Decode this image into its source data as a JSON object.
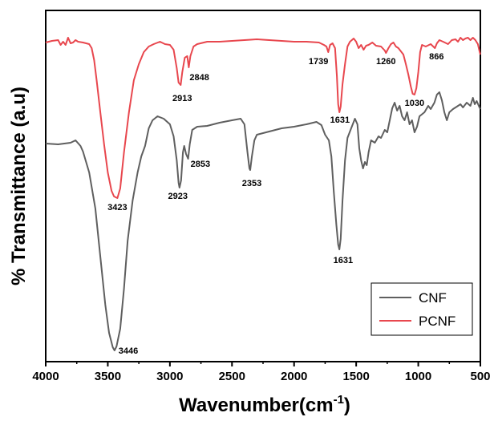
{
  "chart_data": {
    "type": "line",
    "xlabel_main": "Wavenumber(cm",
    "xlabel_sup": "-1",
    "xlabel_end": ")",
    "ylabel": "% Transmittance (a.u)",
    "xlim": [
      4000,
      500
    ],
    "xticks": [
      "4000",
      "3500",
      "3000",
      "2500",
      "2000",
      "1500",
      "1000",
      "500"
    ],
    "legend_position": "bottom-right",
    "grid": false,
    "series": [
      {
        "name": "CNF",
        "color": "#5f5f5f",
        "points": [
          [
            4000,
            179
          ],
          [
            3900,
            180
          ],
          [
            3800,
            178
          ],
          [
            3760,
            175
          ],
          [
            3720,
            182
          ],
          [
            3700,
            189
          ],
          [
            3650,
            215
          ],
          [
            3600,
            260
          ],
          [
            3560,
            320
          ],
          [
            3520,
            380
          ],
          [
            3490,
            415
          ],
          [
            3460,
            433
          ],
          [
            3446,
            437
          ],
          [
            3430,
            432
          ],
          [
            3400,
            410
          ],
          [
            3370,
            360
          ],
          [
            3340,
            300
          ],
          [
            3300,
            250
          ],
          [
            3260,
            215
          ],
          [
            3230,
            195
          ],
          [
            3200,
            182
          ],
          [
            3170,
            160
          ],
          [
            3140,
            150
          ],
          [
            3100,
            145
          ],
          [
            3050,
            148
          ],
          [
            3000,
            155
          ],
          [
            2970,
            170
          ],
          [
            2945,
            200
          ],
          [
            2930,
            228
          ],
          [
            2923,
            234
          ],
          [
            2910,
            225
          ],
          [
            2895,
            190
          ],
          [
            2885,
            182
          ],
          [
            2870,
            192
          ],
          [
            2853,
            198
          ],
          [
            2840,
            180
          ],
          [
            2820,
            162
          ],
          [
            2780,
            158
          ],
          [
            2700,
            157
          ],
          [
            2600,
            153
          ],
          [
            2500,
            150
          ],
          [
            2430,
            148
          ],
          [
            2400,
            155
          ],
          [
            2375,
            190
          ],
          [
            2360,
            210
          ],
          [
            2353,
            212
          ],
          [
            2340,
            195
          ],
          [
            2320,
            175
          ],
          [
            2300,
            168
          ],
          [
            2200,
            164
          ],
          [
            2100,
            160
          ],
          [
            2000,
            158
          ],
          [
            1900,
            155
          ],
          [
            1820,
            152
          ],
          [
            1780,
            156
          ],
          [
            1750,
            168
          ],
          [
            1720,
            175
          ],
          [
            1700,
            195
          ],
          [
            1680,
            240
          ],
          [
            1660,
            280
          ],
          [
            1645,
            305
          ],
          [
            1635,
            311
          ],
          [
            1625,
            298
          ],
          [
            1610,
            250
          ],
          [
            1590,
            200
          ],
          [
            1570,
            172
          ],
          [
            1540,
            160
          ],
          [
            1510,
            148
          ],
          [
            1490,
            155
          ],
          [
            1475,
            185
          ],
          [
            1460,
            200
          ],
          [
            1445,
            210
          ],
          [
            1430,
            202
          ],
          [
            1415,
            206
          ],
          [
            1400,
            190
          ],
          [
            1380,
            175
          ],
          [
            1350,
            178
          ],
          [
            1320,
            170
          ],
          [
            1300,
            172
          ],
          [
            1270,
            162
          ],
          [
            1250,
            165
          ],
          [
            1230,
            150
          ],
          [
            1210,
            135
          ],
          [
            1190,
            128
          ],
          [
            1170,
            138
          ],
          [
            1150,
            132
          ],
          [
            1130,
            145
          ],
          [
            1110,
            150
          ],
          [
            1090,
            140
          ],
          [
            1070,
            155
          ],
          [
            1050,
            150
          ],
          [
            1030,
            165
          ],
          [
            1010,
            158
          ],
          [
            990,
            145
          ],
          [
            950,
            140
          ],
          [
            920,
            132
          ],
          [
            900,
            136
          ],
          [
            870,
            128
          ],
          [
            850,
            118
          ],
          [
            830,
            115
          ],
          [
            810,
            125
          ],
          [
            790,
            140
          ],
          [
            770,
            150
          ],
          [
            750,
            140
          ],
          [
            720,
            136
          ],
          [
            690,
            133
          ],
          [
            660,
            130
          ],
          [
            640,
            134
          ],
          [
            610,
            128
          ],
          [
            580,
            132
          ],
          [
            560,
            122
          ],
          [
            545,
            130
          ],
          [
            530,
            126
          ],
          [
            510,
            133
          ],
          [
            500,
            136
          ]
        ]
      },
      {
        "name": "PCNF",
        "color": "#e8474e",
        "points": [
          [
            4000,
            53
          ],
          [
            3950,
            51
          ],
          [
            3900,
            50
          ],
          [
            3880,
            56
          ],
          [
            3860,
            52
          ],
          [
            3840,
            56
          ],
          [
            3820,
            47
          ],
          [
            3800,
            54
          ],
          [
            3780,
            53
          ],
          [
            3760,
            50
          ],
          [
            3740,
            52
          ],
          [
            3700,
            53
          ],
          [
            3650,
            55
          ],
          [
            3630,
            60
          ],
          [
            3610,
            75
          ],
          [
            3590,
            100
          ],
          [
            3560,
            140
          ],
          [
            3530,
            180
          ],
          [
            3500,
            215
          ],
          [
            3470,
            238
          ],
          [
            3450,
            245
          ],
          [
            3423,
            247
          ],
          [
            3400,
            235
          ],
          [
            3370,
            190
          ],
          [
            3330,
            140
          ],
          [
            3290,
            100
          ],
          [
            3250,
            80
          ],
          [
            3210,
            65
          ],
          [
            3170,
            58
          ],
          [
            3130,
            55
          ],
          [
            3080,
            52
          ],
          [
            3040,
            55
          ],
          [
            3000,
            56
          ],
          [
            2970,
            62
          ],
          [
            2945,
            85
          ],
          [
            2930,
            103
          ],
          [
            2913,
            106
          ],
          [
            2900,
            90
          ],
          [
            2880,
            72
          ],
          [
            2860,
            70
          ],
          [
            2848,
            84
          ],
          [
            2835,
            70
          ],
          [
            2810,
            58
          ],
          [
            2780,
            55
          ],
          [
            2700,
            52
          ],
          [
            2600,
            52
          ],
          [
            2500,
            51
          ],
          [
            2400,
            50
          ],
          [
            2300,
            49
          ],
          [
            2200,
            50
          ],
          [
            2100,
            51
          ],
          [
            2000,
            52
          ],
          [
            1900,
            52
          ],
          [
            1800,
            53
          ],
          [
            1760,
            56
          ],
          [
            1739,
            58
          ],
          [
            1725,
            65
          ],
          [
            1710,
            56
          ],
          [
            1690,
            54
          ],
          [
            1670,
            60
          ],
          [
            1655,
            95
          ],
          [
            1645,
            130
          ],
          [
            1635,
            140
          ],
          [
            1625,
            133
          ],
          [
            1610,
            105
          ],
          [
            1590,
            80
          ],
          [
            1570,
            58
          ],
          [
            1550,
            52
          ],
          [
            1520,
            48
          ],
          [
            1500,
            52
          ],
          [
            1480,
            60
          ],
          [
            1460,
            56
          ],
          [
            1440,
            62
          ],
          [
            1420,
            57
          ],
          [
            1400,
            56
          ],
          [
            1370,
            53
          ],
          [
            1340,
            57
          ],
          [
            1300,
            58
          ],
          [
            1270,
            63
          ],
          [
            1260,
            66
          ],
          [
            1240,
            60
          ],
          [
            1220,
            55
          ],
          [
            1200,
            53
          ],
          [
            1180,
            58
          ],
          [
            1160,
            60
          ],
          [
            1140,
            64
          ],
          [
            1120,
            68
          ],
          [
            1100,
            80
          ],
          [
            1080,
            93
          ],
          [
            1060,
            108
          ],
          [
            1045,
            117
          ],
          [
            1030,
            118
          ],
          [
            1015,
            110
          ],
          [
            1000,
            90
          ],
          [
            985,
            65
          ],
          [
            970,
            56
          ],
          [
            940,
            58
          ],
          [
            900,
            55
          ],
          [
            866,
            60
          ],
          [
            850,
            54
          ],
          [
            830,
            50
          ],
          [
            800,
            52
          ],
          [
            760,
            55
          ],
          [
            730,
            50
          ],
          [
            700,
            49
          ],
          [
            680,
            52
          ],
          [
            660,
            47
          ],
          [
            640,
            50
          ],
          [
            620,
            48
          ],
          [
            600,
            47
          ],
          [
            580,
            50
          ],
          [
            560,
            47
          ],
          [
            540,
            50
          ],
          [
            520,
            55
          ],
          [
            505,
            65
          ],
          [
            500,
            68
          ]
        ]
      }
    ],
    "annotations": [
      {
        "text": "3446",
        "x": 3446,
        "yPix": 437,
        "dx": 5,
        "dy": 4,
        "anchor": "start"
      },
      {
        "text": "2923",
        "x": 2923,
        "yPix": 234,
        "dx": -2,
        "dy": 14,
        "anchor": "middle"
      },
      {
        "text": "2853",
        "x": 2853,
        "yPix": 198,
        "dx": 3,
        "dy": 10,
        "anchor": "start"
      },
      {
        "text": "2353",
        "x": 2353,
        "yPix": 212,
        "dx": 2,
        "dy": 20,
        "anchor": "middle"
      },
      {
        "text": "1631",
        "x": 1631,
        "yPix": 311,
        "dx": 4,
        "dy": 17,
        "anchor": "middle"
      },
      {
        "text": "3423",
        "x": 3423,
        "yPix": 247,
        "dx": 0,
        "dy": 15,
        "anchor": "middle"
      },
      {
        "text": "2913",
        "x": 2913,
        "yPix": 106,
        "dx": 2,
        "dy": 20,
        "anchor": "middle"
      },
      {
        "text": "2848",
        "x": 2848,
        "yPix": 84,
        "dx": 1,
        "dy": 16,
        "anchor": "start"
      },
      {
        "text": "1739",
        "x": 1739,
        "yPix": 58,
        "dx": -10,
        "dy": 22,
        "anchor": "middle"
      },
      {
        "text": "1631",
        "x": 1631,
        "yPix": 140,
        "dx": 0,
        "dy": 13,
        "anchor": "middle"
      },
      {
        "text": "1260",
        "x": 1260,
        "yPix": 66,
        "dx": 0,
        "dy": 14,
        "anchor": "middle"
      },
      {
        "text": "1030",
        "x": 1030,
        "yPix": 118,
        "dx": 0,
        "dy": 14,
        "anchor": "middle"
      },
      {
        "text": "866",
        "x": 866,
        "yPix": 60,
        "dx": 2,
        "dy": 14,
        "anchor": "middle"
      }
    ]
  }
}
